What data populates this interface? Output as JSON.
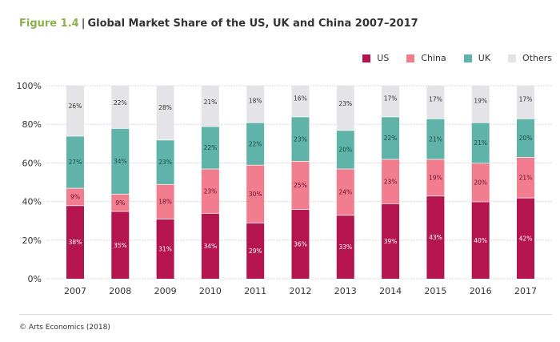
{
  "title": {
    "figure": "Figure 1.4",
    "separator": "|",
    "text": "Global Market Share of the US, UK and China 2007–2017"
  },
  "footer": "© Arts Economics (2018)",
  "chart_data": {
    "type": "bar",
    "stacked": true,
    "title": "Global Market Share of the US, UK and China 2007–2017",
    "categories": [
      "2007",
      "2008",
      "2009",
      "2010",
      "2011",
      "2012",
      "2013",
      "2014",
      "2015",
      "2016",
      "2017"
    ],
    "series": [
      {
        "name": "US",
        "color": "#b5154f",
        "label_color": "#ffffff",
        "values": [
          38,
          35,
          31,
          34,
          29,
          36,
          33,
          39,
          43,
          40,
          42
        ]
      },
      {
        "name": "China",
        "color": "#f17d8e",
        "label_color": "#6b1030",
        "values": [
          9,
          9,
          18,
          23,
          30,
          25,
          24,
          23,
          19,
          20,
          21
        ]
      },
      {
        "name": "UK",
        "color": "#5fb3a8",
        "label_color": "#1f4a45",
        "values": [
          27,
          34,
          23,
          22,
          22,
          23,
          20,
          22,
          21,
          21,
          20
        ]
      },
      {
        "name": "Others",
        "color": "#e4e4e8",
        "label_color": "#333333",
        "values": [
          26,
          22,
          28,
          21,
          18,
          16,
          23,
          17,
          17,
          19,
          17
        ]
      }
    ],
    "ylim": [
      0,
      100
    ],
    "yticks": [
      "0%",
      "20%",
      "40%",
      "60%",
      "80%",
      "100%"
    ],
    "grid": true,
    "legend": "top-right",
    "xlabel": "",
    "ylabel": ""
  }
}
